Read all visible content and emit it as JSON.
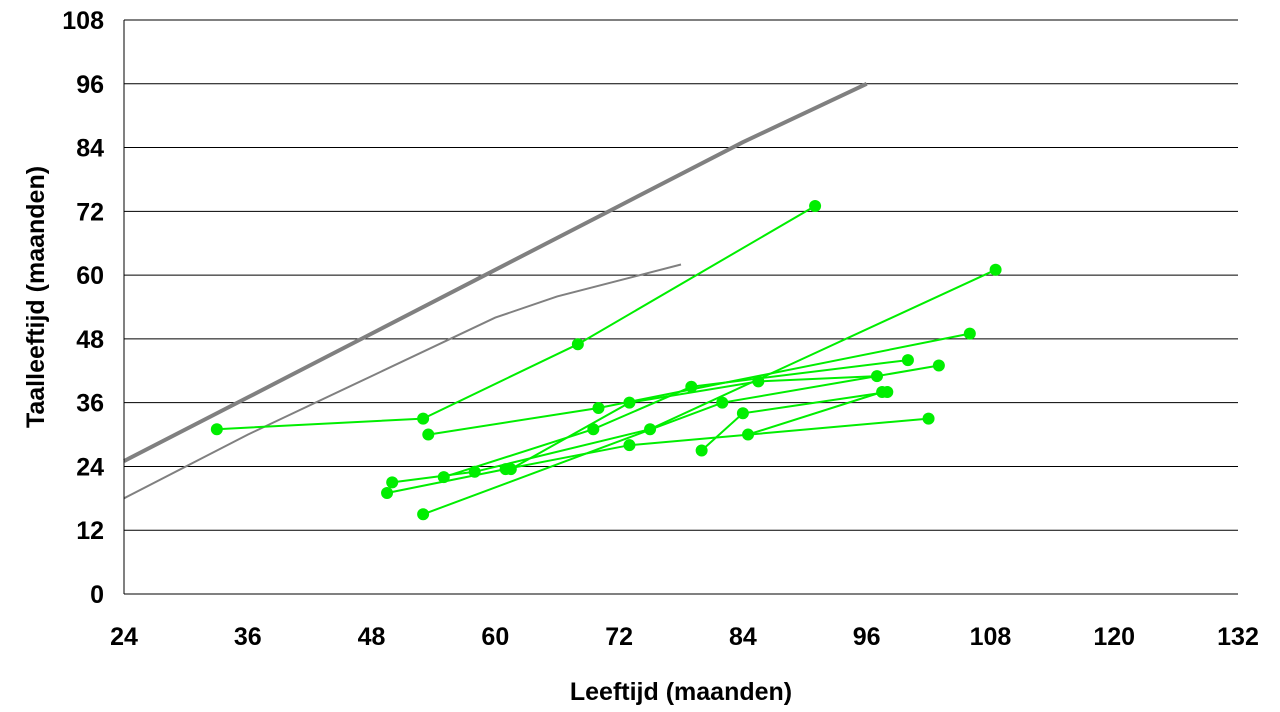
{
  "chart_data": {
    "type": "line",
    "title": "",
    "xlabel": "Leeftijd (maanden)",
    "ylabel": "Taalleeftijd (maanden)",
    "xlim": [
      24,
      132
    ],
    "ylim": [
      0,
      108
    ],
    "x_ticks": [
      24,
      36,
      48,
      60,
      72,
      84,
      96,
      108,
      120,
      132
    ],
    "y_ticks": [
      0,
      12,
      24,
      36,
      48,
      60,
      72,
      84,
      96,
      108
    ],
    "grid": "horizontal",
    "legend": "none",
    "colors": {
      "reference_thick": "#808080",
      "reference_thin": "#808080",
      "children": "#00ee00",
      "grid": "#000000",
      "axis": "#000000"
    },
    "reference_lines": [
      {
        "style": "thick",
        "points": [
          [
            24,
            25
          ],
          [
            36,
            37
          ],
          [
            48,
            49
          ],
          [
            60,
            61
          ],
          [
            72,
            73
          ],
          [
            84,
            85
          ],
          [
            96,
            96
          ]
        ]
      },
      {
        "style": "thin",
        "points": [
          [
            24,
            18
          ],
          [
            36,
            30
          ],
          [
            48,
            41
          ],
          [
            60,
            52
          ],
          [
            66,
            56
          ],
          [
            78,
            62
          ]
        ]
      }
    ],
    "series": [
      {
        "points": [
          [
            33,
            31
          ],
          [
            53,
            33
          ],
          [
            68,
            47
          ],
          [
            91,
            73
          ]
        ]
      },
      {
        "points": [
          [
            53.5,
            30
          ],
          [
            70,
            35
          ],
          [
            106,
            49
          ]
        ]
      },
      {
        "points": [
          [
            50,
            21
          ],
          [
            58,
            23
          ],
          [
            75,
            31
          ],
          [
            108.5,
            61
          ]
        ]
      },
      {
        "points": [
          [
            55,
            22
          ],
          [
            69.5,
            31
          ],
          [
            79,
            39
          ],
          [
            100,
            44
          ]
        ]
      },
      {
        "points": [
          [
            49.5,
            19
          ],
          [
            61,
            23.5
          ],
          [
            73,
            28
          ],
          [
            102,
            33
          ]
        ]
      },
      {
        "points": [
          [
            61.5,
            23.5
          ],
          [
            73,
            36
          ],
          [
            85.5,
            40
          ],
          [
            97,
            41
          ]
        ]
      },
      {
        "points": [
          [
            53,
            15
          ],
          [
            82,
            36
          ],
          [
            103,
            43
          ]
        ]
      },
      {
        "points": [
          [
            80,
            27
          ],
          [
            84,
            34
          ],
          [
            98,
            38
          ]
        ]
      },
      {
        "points": [
          [
            84.5,
            30
          ],
          [
            97.5,
            38
          ]
        ]
      }
    ]
  }
}
